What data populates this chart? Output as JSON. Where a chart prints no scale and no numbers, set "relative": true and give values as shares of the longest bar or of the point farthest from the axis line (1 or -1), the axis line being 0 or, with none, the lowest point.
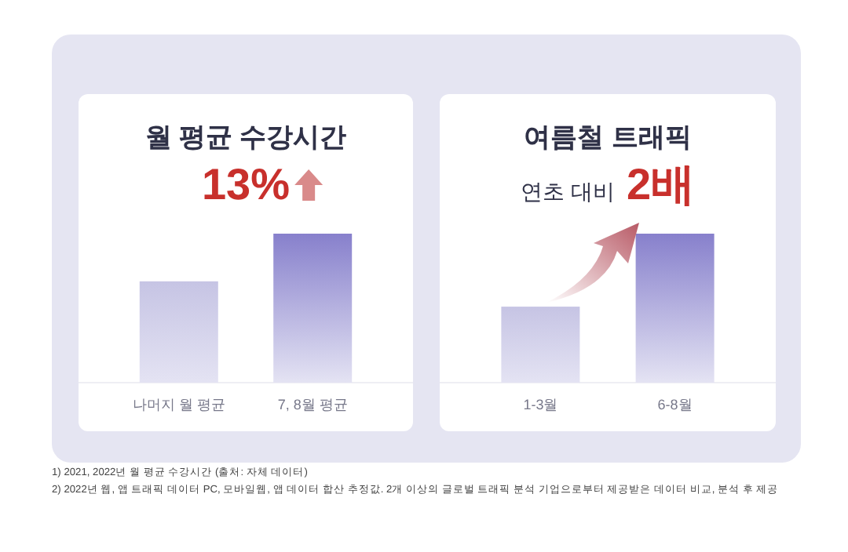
{
  "chart_data": [
    {
      "type": "bar",
      "title": "월 평균 수강시간",
      "subtitle": "13%",
      "relative": true,
      "categories": [
        "나머지 월 평균",
        "7, 8월 평균"
      ],
      "values": [
        0.68,
        1
      ],
      "colors": [
        "#c6c4e4",
        "#8780cc"
      ],
      "annotations": [
        "1) 2021, 2022년 월 평균 수강시간 (출처: 자체 데이터)"
      ]
    },
    {
      "type": "bar",
      "title": "여름철 트래픽",
      "subtitle": "연초 대비 2배",
      "relative": true,
      "categories": [
        "1-3월",
        "6-8월"
      ],
      "values": [
        0.51,
        1
      ],
      "colors": [
        "#c6c4e4",
        "#8780cc"
      ],
      "annotations": [
        "2) 2022년 웹, 앱 트래픽 데이터 PC, 모바일웹, 앱 데이터 합산 추정값. 2개 이상의 글로벌 트래픽 분석 기업으로부터 제공받은 데이터 비교, 분석 후 제공"
      ]
    }
  ]
}
